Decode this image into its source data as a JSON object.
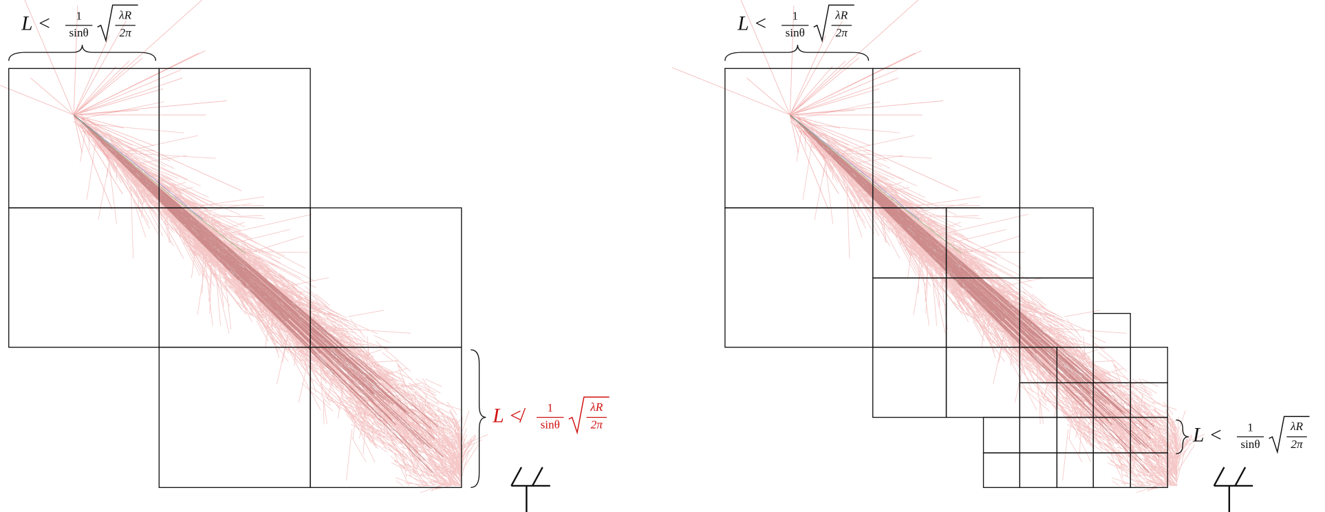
{
  "left_panel": {
    "top_annotation": {
      "lhs": "L <",
      "numerator": "1",
      "denominator": "sinθ",
      "radicand_numerator": "λR",
      "radicand_denominator": "2π"
    },
    "side_annotation": {
      "lhs": "L ≮",
      "numerator": "1",
      "denominator": "sinθ",
      "radicand_numerator": "λR",
      "radicand_denominator": "2π"
    }
  },
  "right_panel": {
    "top_annotation": {
      "lhs": "L <",
      "numerator": "1",
      "denominator": "sinθ",
      "radicand_numerator": "λR",
      "radicand_denominator": "2π"
    },
    "side_annotation": {
      "lhs": "L <",
      "numerator": "1",
      "denominator": "sinθ",
      "radicand_numerator": "λR",
      "radicand_denominator": "2π"
    }
  }
}
